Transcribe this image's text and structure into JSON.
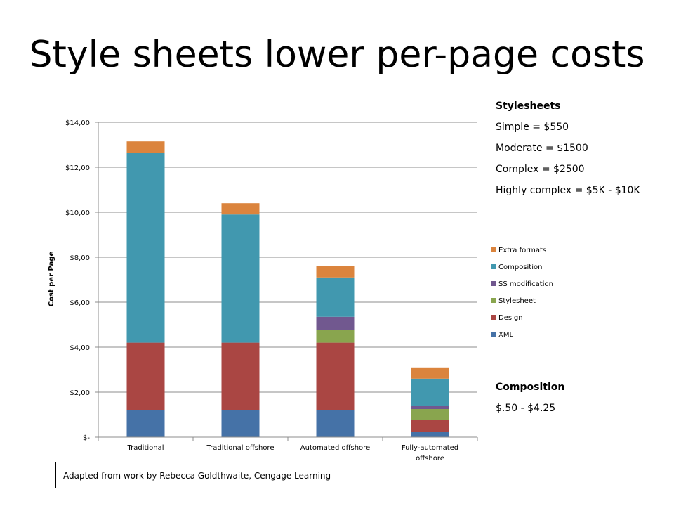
{
  "slide": {
    "title": "Style sheets lower per-page costs"
  },
  "stylesheet_panel": {
    "heading": "Stylesheets",
    "lines": [
      "Simple = $550",
      "Moderate = $1500",
      "Complex = $2500",
      "Highly complex = $5K - $10K"
    ]
  },
  "composition_panel": {
    "heading": "Composition",
    "range": "$.50 - $4.25"
  },
  "note": "Adapted from work by Rebecca Goldthwaite, Cengage Learning",
  "chart_data": {
    "type": "bar",
    "stacked": true,
    "ylabel": "Cost per Page",
    "ylim": [
      0,
      14
    ],
    "y_ticks": [
      0,
      2,
      4,
      6,
      8,
      10,
      12,
      14
    ],
    "y_tick_labels": [
      "$-",
      "$2,00",
      "$4,00",
      "$6,00",
      "$8,00",
      "$10,00",
      "$12,00",
      "$14,00"
    ],
    "grid": true,
    "legend_position": "right",
    "categories": [
      "Traditional",
      "Traditional offshore",
      "Automated offshore",
      "Fully-automated offshore"
    ],
    "category_label_lines": [
      [
        "Traditional"
      ],
      [
        "Traditional offshore"
      ],
      [
        "Automated offshore"
      ],
      [
        "Fully-automated",
        "offshore"
      ]
    ],
    "series": [
      {
        "name": "XML",
        "color": "#4572A7",
        "values": [
          1.2,
          1.2,
          1.2,
          0.25
        ]
      },
      {
        "name": "Design",
        "color": "#AA4643",
        "values": [
          3.0,
          3.0,
          3.0,
          0.5
        ]
      },
      {
        "name": "Stylesheet",
        "color": "#89A54E",
        "values": [
          0,
          0,
          0.55,
          0.5
        ]
      },
      {
        "name": "SS modification",
        "color": "#71588F",
        "values": [
          0,
          0,
          0.6,
          0.15
        ]
      },
      {
        "name": "Composition",
        "color": "#4198AF",
        "values": [
          8.45,
          5.7,
          1.75,
          1.2
        ]
      },
      {
        "name": "Extra formats",
        "color": "#DB843D",
        "values": [
          0.5,
          0.5,
          0.5,
          0.5
        ]
      }
    ]
  }
}
